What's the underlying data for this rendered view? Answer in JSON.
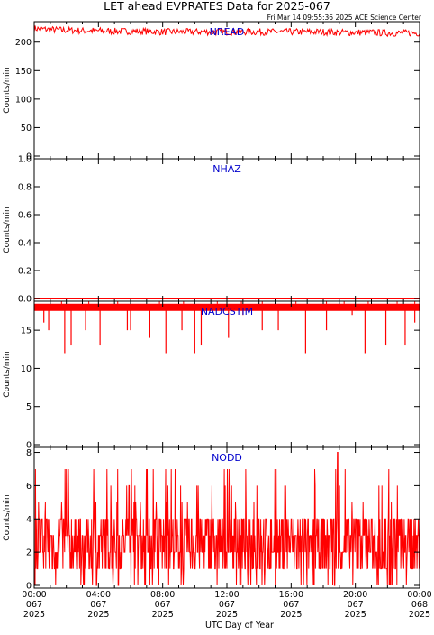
{
  "figure": {
    "title": "LET ahead EVPRATES Data for 2025-067",
    "timestamp": "Fri Mar 14 09:55:36 2025 ACE Science Center",
    "xlabel": "UTC Day of Year"
  },
  "colors": {
    "series": "#ff0000",
    "panel_label": "#0000cc",
    "axis": "#000000"
  },
  "chart_data": [
    {
      "type": "line",
      "panel": "NREAD",
      "ylabel": "Counts/min",
      "ylim": [
        0,
        236
      ],
      "yticks": [
        "0",
        "50",
        "100",
        "150",
        "200"
      ],
      "xlim_hours": [
        0,
        24
      ],
      "x_hours": [
        0,
        1,
        2,
        3,
        4,
        5,
        6,
        7,
        8,
        9,
        10,
        11,
        12,
        13,
        14,
        15,
        16,
        17,
        18,
        19,
        20,
        21,
        22,
        23,
        24
      ],
      "values": [
        224,
        222,
        221,
        220,
        220,
        219,
        219,
        219,
        218,
        218,
        218,
        218,
        218,
        218,
        218,
        218,
        218,
        218,
        218,
        217,
        217,
        217,
        216,
        216,
        216
      ],
      "band": [
        210,
        231
      ]
    },
    {
      "type": "line",
      "panel": "NHAZ",
      "ylabel": "Counts/min",
      "ylim": [
        0,
        1.0
      ],
      "yticks": [
        "0.0",
        "0.2",
        "0.4",
        "0.6",
        "0.8",
        "1.0"
      ],
      "xlim_hours": [
        0,
        24
      ],
      "x_hours": [
        0,
        24
      ],
      "values": [
        0,
        0
      ]
    },
    {
      "type": "line",
      "panel": "NADCSTIM",
      "ylabel": "Counts/min",
      "ylim": [
        0,
        18.8
      ],
      "yticks": [
        "0",
        "5",
        "10",
        "15"
      ],
      "xlim_hours": [
        0,
        24
      ],
      "baseline": 18,
      "dips": [
        {
          "hour": 0.6,
          "value": 16
        },
        {
          "hour": 0.9,
          "value": 15
        },
        {
          "hour": 1.9,
          "value": 12
        },
        {
          "hour": 2.3,
          "value": 13
        },
        {
          "hour": 3.2,
          "value": 15
        },
        {
          "hour": 4.1,
          "value": 13
        },
        {
          "hour": 5.8,
          "value": 15
        },
        {
          "hour": 6.0,
          "value": 15
        },
        {
          "hour": 7.2,
          "value": 14
        },
        {
          "hour": 8.2,
          "value": 12
        },
        {
          "hour": 9.2,
          "value": 15
        },
        {
          "hour": 10.0,
          "value": 12
        },
        {
          "hour": 10.4,
          "value": 13
        },
        {
          "hour": 12.1,
          "value": 14
        },
        {
          "hour": 13.0,
          "value": 17
        },
        {
          "hour": 14.2,
          "value": 15
        },
        {
          "hour": 15.2,
          "value": 15
        },
        {
          "hour": 16.9,
          "value": 12
        },
        {
          "hour": 18.2,
          "value": 15
        },
        {
          "hour": 19.8,
          "value": 17
        },
        {
          "hour": 20.6,
          "value": 12
        },
        {
          "hour": 21.9,
          "value": 13
        },
        {
          "hour": 23.1,
          "value": 13
        },
        {
          "hour": 23.7,
          "value": 16
        }
      ],
      "spikes_up_hours": [
        1.7,
        3.4,
        5.2,
        7.8,
        9.3,
        11.4,
        12.9,
        14.2,
        16.3,
        18.2,
        19.3,
        20.8,
        22.6,
        23.7
      ]
    },
    {
      "type": "line",
      "panel": "NODD",
      "ylabel": "Counts/min",
      "ylim": [
        0,
        8.3
      ],
      "yticks": [
        "0",
        "2",
        "4",
        "6",
        "8"
      ],
      "xlim_hours": [
        0,
        24
      ],
      "dense_range": [
        1,
        4
      ],
      "peak": {
        "hour": 18.9,
        "value": 8
      },
      "frequent_peaks": [
        5,
        6,
        7
      ]
    }
  ],
  "xaxis": {
    "ticks_hours": [
      0,
      4,
      8,
      12,
      16,
      20,
      24
    ],
    "tick_labels": [
      [
        "00:00",
        "067",
        "2025"
      ],
      [
        "04:00",
        "067",
        "2025"
      ],
      [
        "08:00",
        "067",
        "2025"
      ],
      [
        "12:00",
        "067",
        "2025"
      ],
      [
        "16:00",
        "067",
        "2025"
      ],
      [
        "20:00",
        "067",
        "2025"
      ],
      [
        "00:00",
        "068",
        "2025"
      ]
    ]
  }
}
